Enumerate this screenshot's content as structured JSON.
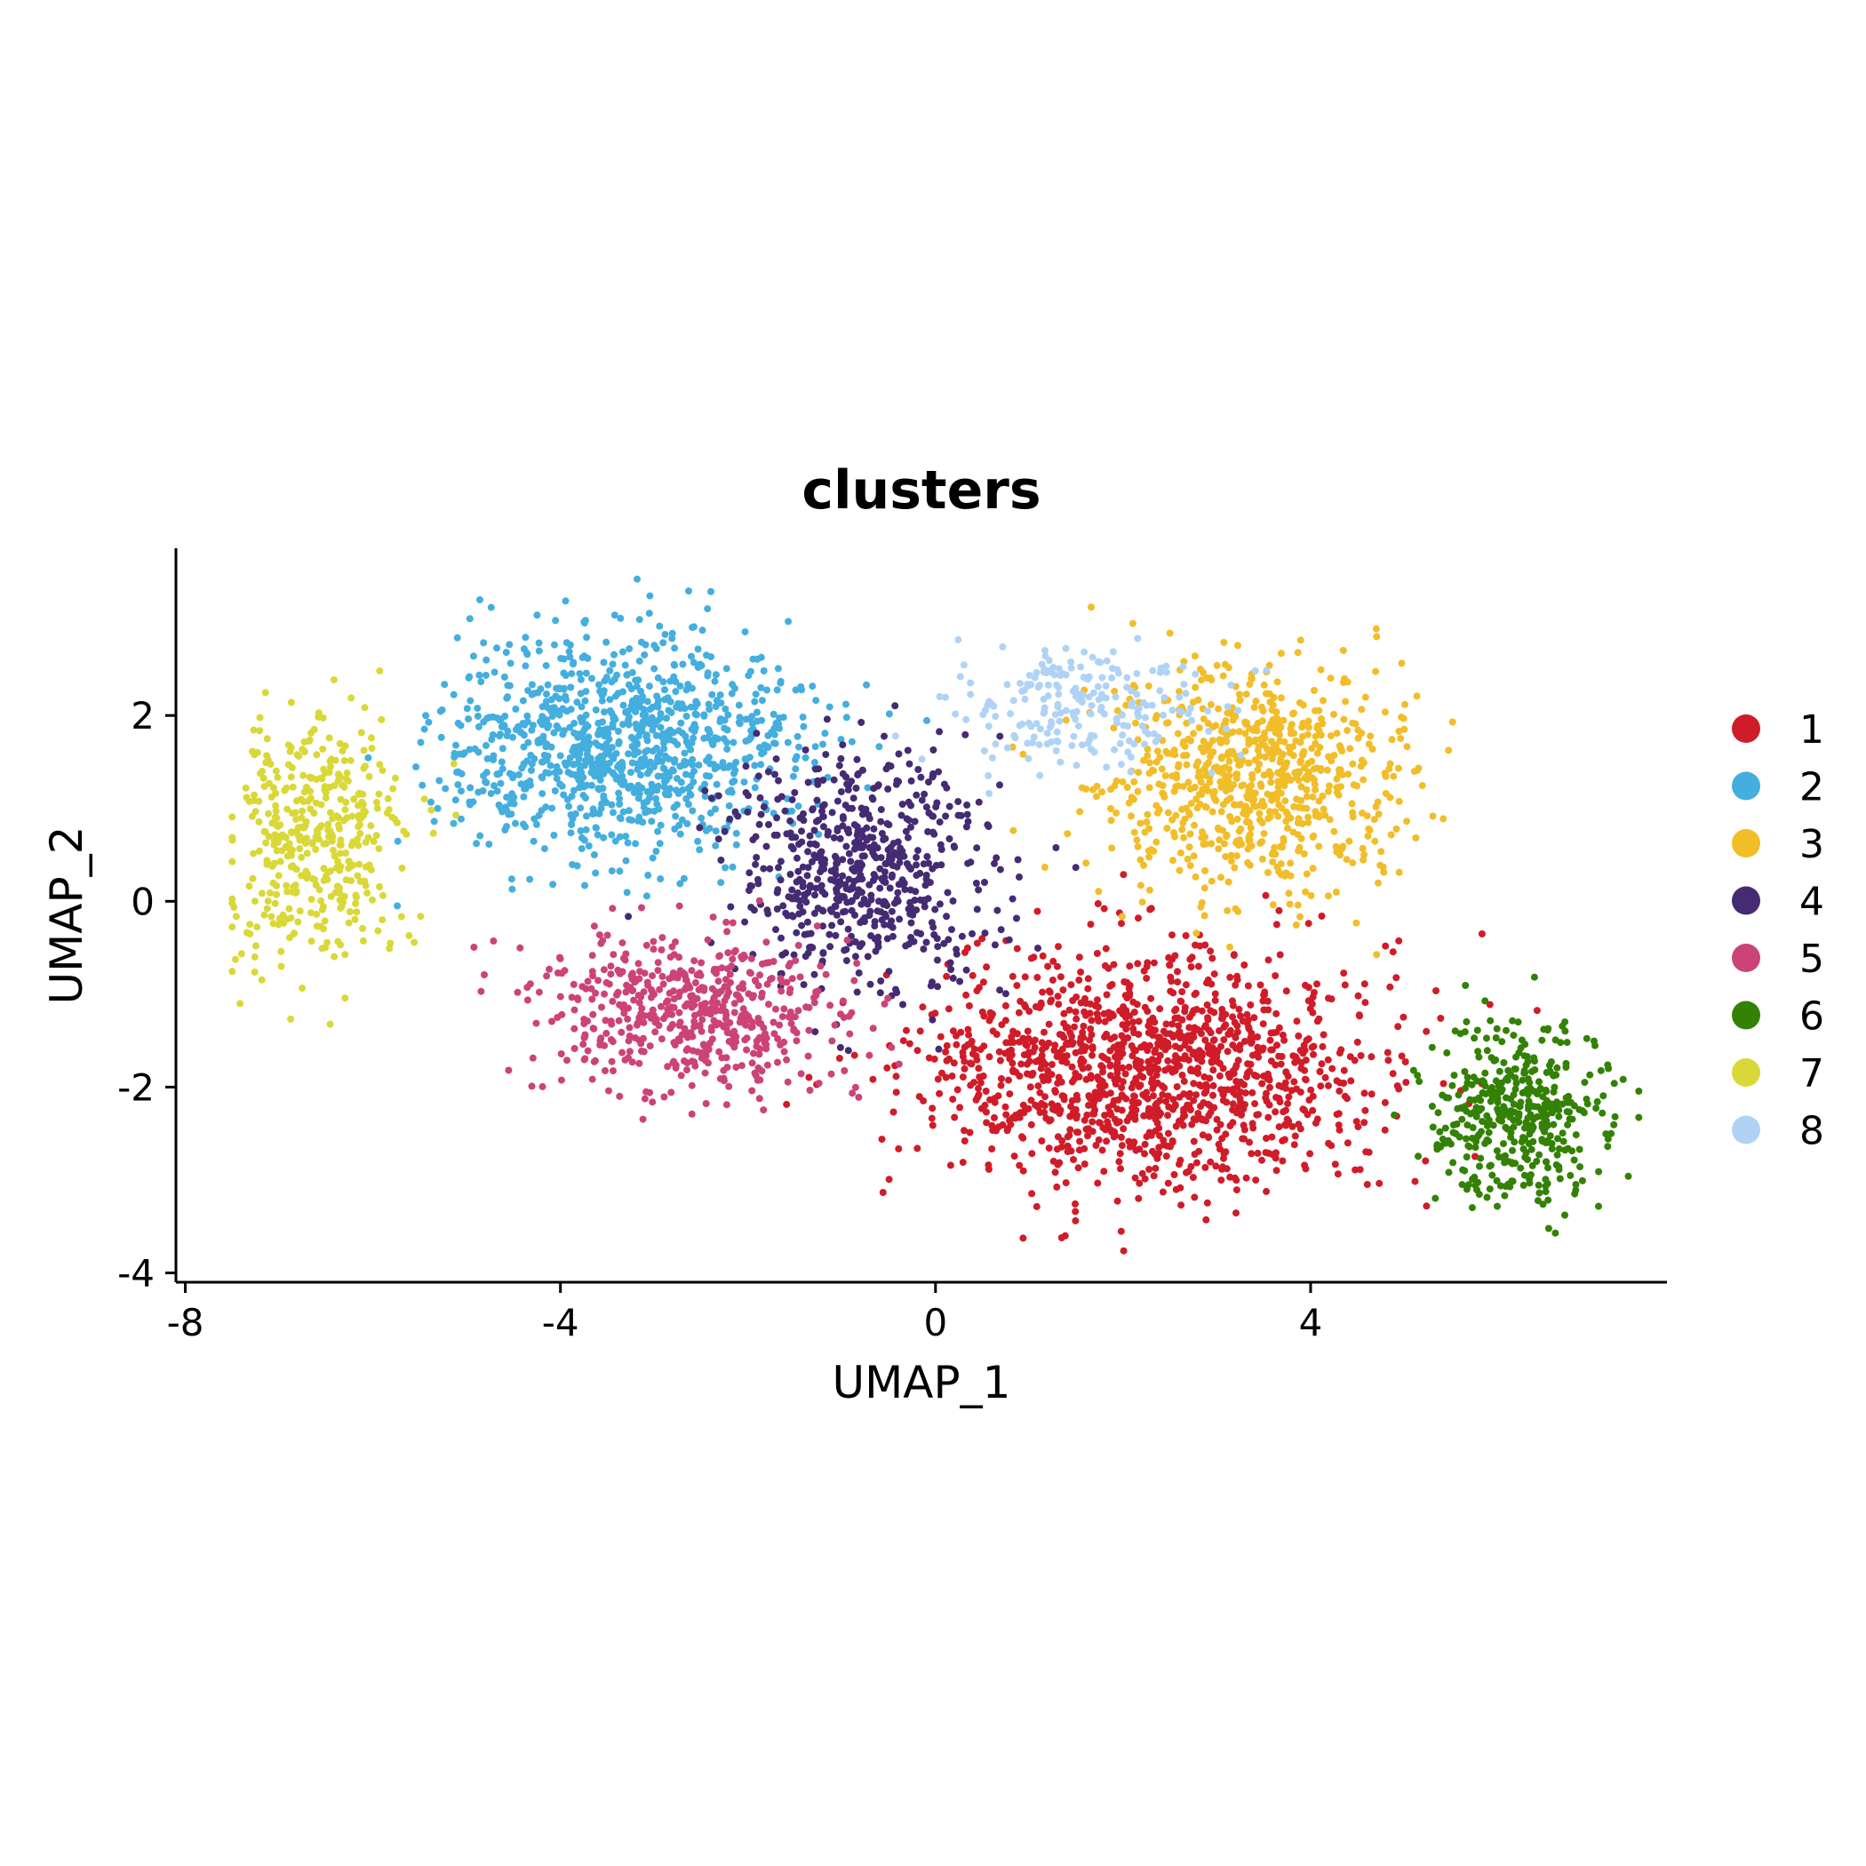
{
  "chart_data": {
    "type": "scatter",
    "title": "clusters",
    "xlabel": "UMAP_1",
    "ylabel": "UMAP_2",
    "xlim": [
      -8.1,
      7.8
    ],
    "ylim": [
      -4.1,
      3.8
    ],
    "xticks": [
      -8,
      -4,
      0,
      4
    ],
    "xtick_labels": [
      "-8",
      "-4",
      "0",
      "4"
    ],
    "yticks": [
      2,
      0,
      -2,
      -4
    ],
    "ytick_labels": [
      "2",
      "0",
      "-2",
      "-4"
    ],
    "grid": false,
    "legend_position": "right",
    "series": [
      {
        "name": "1",
        "color": "#D01C29",
        "cx": 2.3,
        "cy": -1.8,
        "sx": 1.4,
        "sy": 0.75,
        "n": 1300
      },
      {
        "name": "2",
        "color": "#44AEDE",
        "cx": -3.3,
        "cy": 1.7,
        "sx": 1.1,
        "sy": 0.7,
        "n": 1000
      },
      {
        "name": "3",
        "color": "#F1BD29",
        "cx": 3.4,
        "cy": 1.3,
        "sx": 0.9,
        "sy": 0.75,
        "n": 750
      },
      {
        "name": "4",
        "color": "#452B73",
        "cx": -0.8,
        "cy": 0.3,
        "sx": 0.8,
        "sy": 0.75,
        "n": 600
      },
      {
        "name": "5",
        "color": "#CC4377",
        "cx": -2.6,
        "cy": -1.2,
        "sx": 1.0,
        "sy": 0.5,
        "n": 550
      },
      {
        "name": "6",
        "color": "#338105",
        "cx": 6.2,
        "cy": -2.3,
        "sx": 0.55,
        "sy": 0.55,
        "n": 420
      },
      {
        "name": "7",
        "color": "#D9D838",
        "cx": -6.6,
        "cy": 0.7,
        "sx": 0.55,
        "sy": 0.8,
        "n": 420
      },
      {
        "name": "8",
        "color": "#B0D3F5",
        "cx": 1.5,
        "cy": 2.1,
        "sx": 0.8,
        "sy": 0.4,
        "n": 220
      }
    ]
  }
}
